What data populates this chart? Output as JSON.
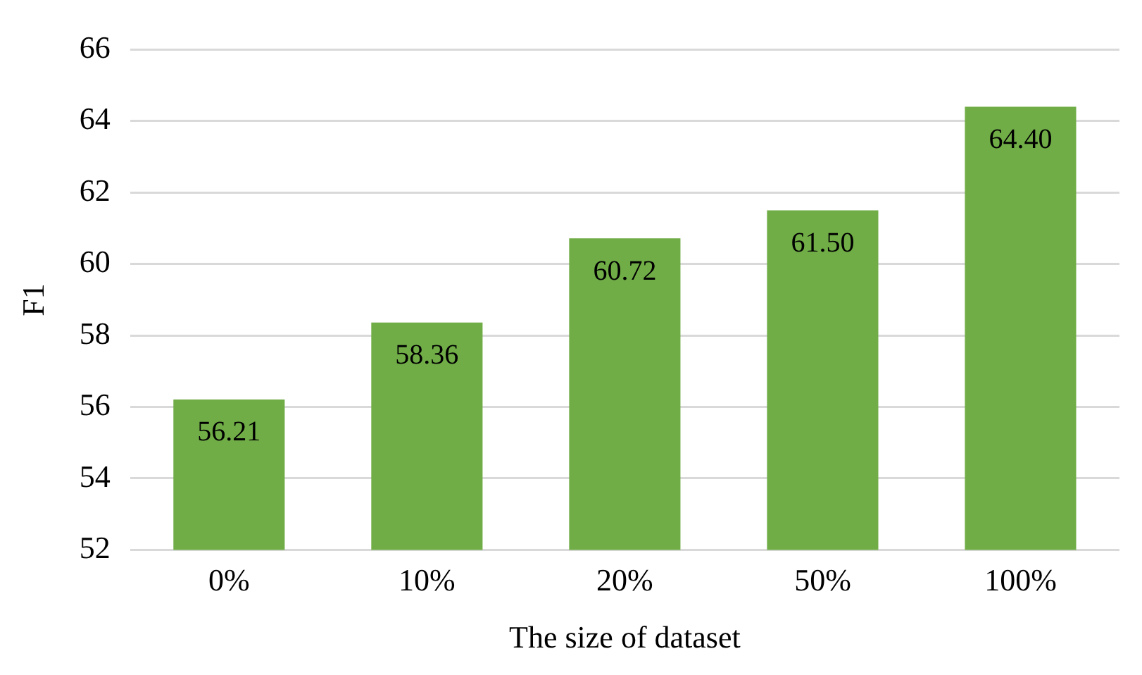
{
  "chart_data": {
    "type": "bar",
    "xlabel": "The size of dataset",
    "ylabel": "F1",
    "categories": [
      "0%",
      "10%",
      "20%",
      "50%",
      "100%"
    ],
    "values": [
      56.21,
      58.36,
      60.72,
      61.5,
      64.4
    ],
    "value_labels": [
      "56.21",
      "58.36",
      "60.72",
      "61.50",
      "64.40"
    ],
    "color": "#70ad47",
    "ylim": [
      52,
      66
    ],
    "yticks": [
      52,
      54,
      56,
      58,
      60,
      62,
      64,
      66
    ],
    "grid": "y",
    "legend": false
  }
}
